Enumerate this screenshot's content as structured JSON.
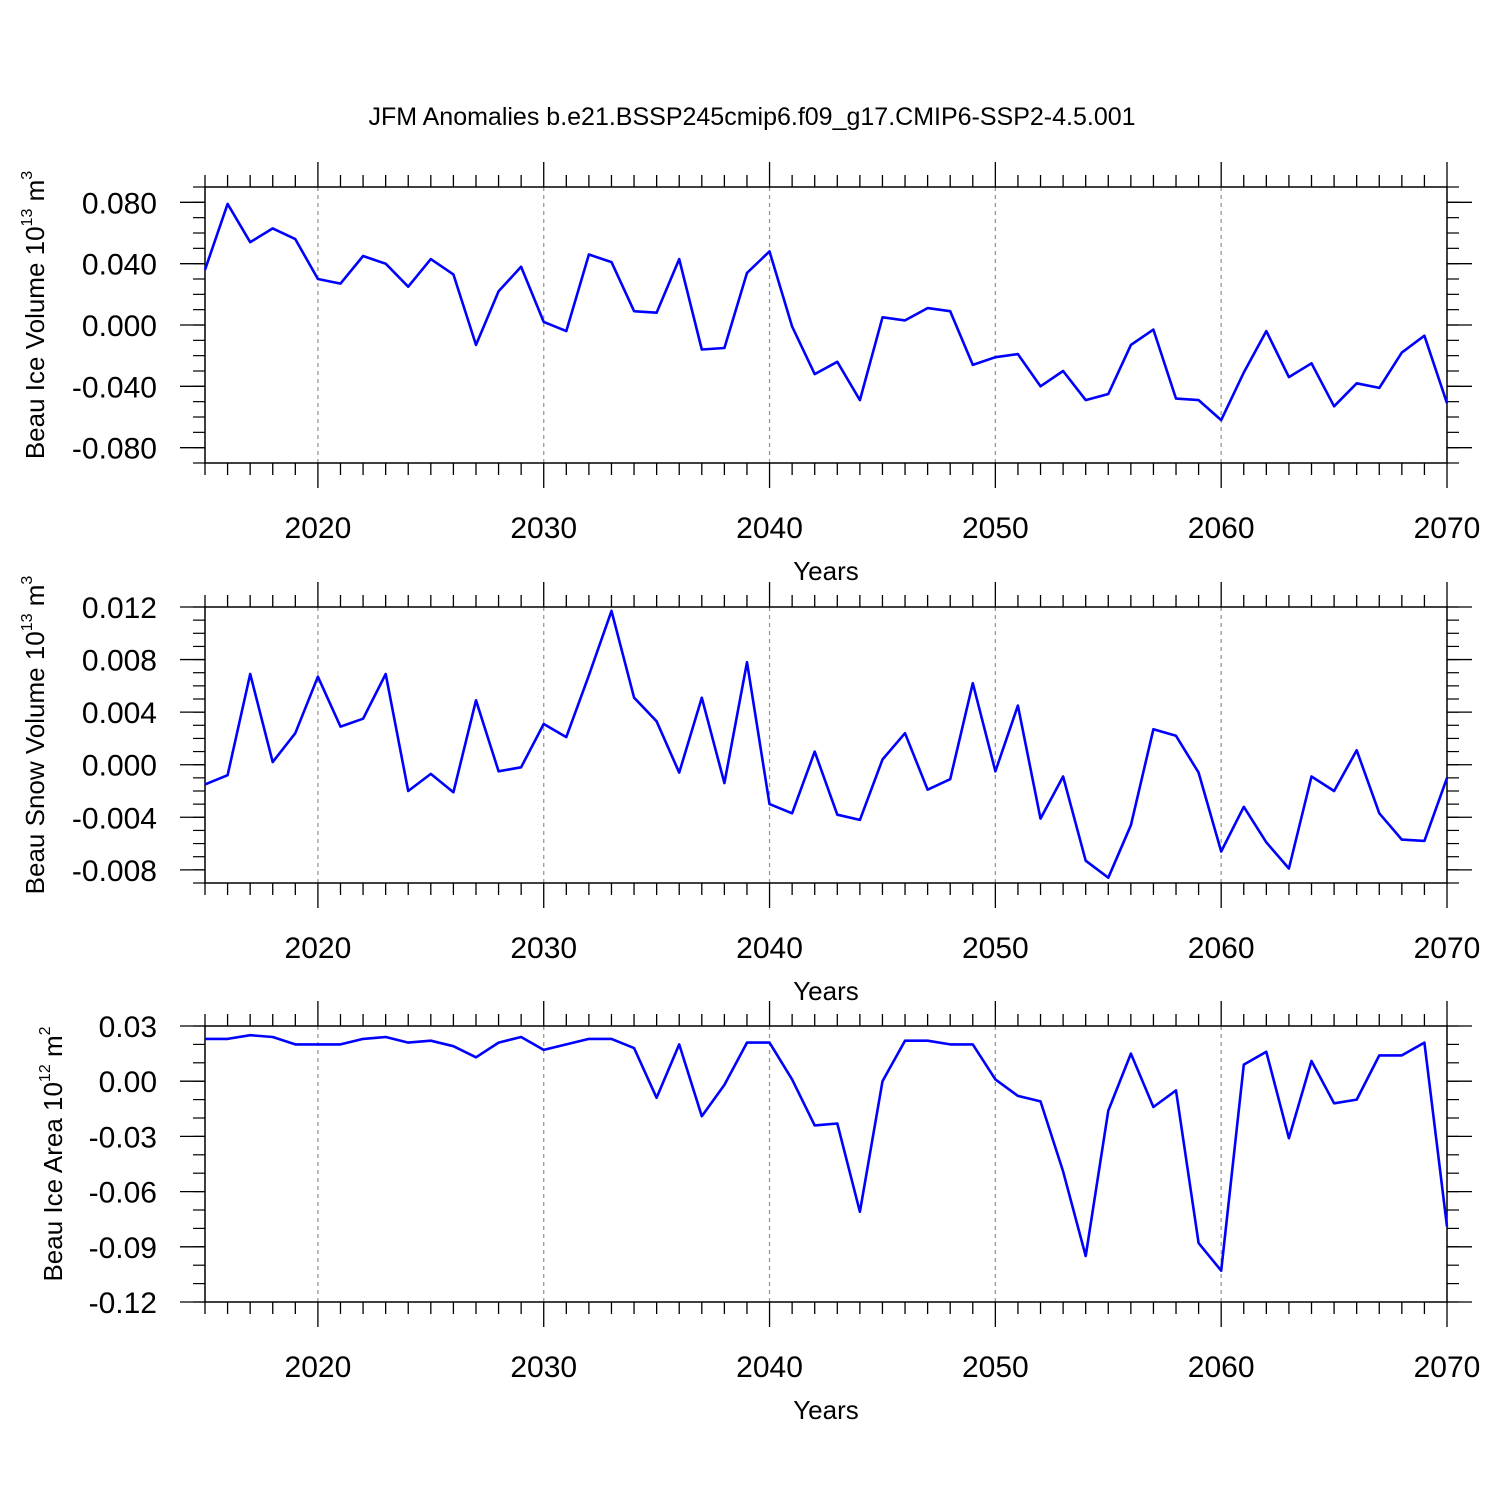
{
  "title": "JFM Anomalies b.e21.BSSP245cmip6.f09_g17.CMIP6-SSP2-4.5.001",
  "colors": {
    "line": "#0000ff",
    "axis": "#000000",
    "grid": "#999999"
  },
  "chart_data": [
    {
      "type": "line",
      "ylabel": "Beau Ice Volume 10",
      "ylabel_exp": "13",
      "ylabel_unit": "m",
      "ylabel_unit_exp": "3",
      "xlabel": "Years",
      "xlim": [
        2015,
        2070
      ],
      "ylim": [
        -0.09,
        0.09
      ],
      "x_ticks": [
        2020,
        2030,
        2040,
        2050,
        2060,
        2070
      ],
      "x_tick_labels": [
        "2020",
        "2030",
        "2040",
        "2050",
        "2060",
        "2070"
      ],
      "y_ticks": [
        0.08,
        0.04,
        0.0,
        -0.04,
        -0.08
      ],
      "y_tick_labels": [
        "0.080",
        "0.040",
        "0.000",
        "-0.040",
        "-0.080"
      ],
      "y_minor_step": 0.01,
      "grid_x": true,
      "series": [
        {
          "name": "Beau Ice Volume",
          "x": [
            2015,
            2016,
            2017,
            2018,
            2019,
            2020,
            2021,
            2022,
            2023,
            2024,
            2025,
            2026,
            2027,
            2028,
            2029,
            2030,
            2031,
            2032,
            2033,
            2034,
            2035,
            2036,
            2037,
            2038,
            2039,
            2040,
            2041,
            2042,
            2043,
            2044,
            2045,
            2046,
            2047,
            2048,
            2049,
            2050,
            2051,
            2052,
            2053,
            2054,
            2055,
            2056,
            2057,
            2058,
            2059,
            2060,
            2061,
            2062,
            2063,
            2064,
            2065,
            2066,
            2067,
            2068,
            2069,
            2070
          ],
          "values": [
            0.036,
            0.079,
            0.054,
            0.063,
            0.056,
            0.03,
            0.027,
            0.045,
            0.04,
            0.025,
            0.043,
            0.033,
            -0.013,
            0.022,
            0.038,
            0.002,
            -0.004,
            0.046,
            0.041,
            0.009,
            0.008,
            0.043,
            -0.016,
            -0.015,
            0.034,
            0.048,
            -0.001,
            -0.032,
            -0.024,
            -0.049,
            0.005,
            0.003,
            0.011,
            0.009,
            -0.026,
            -0.021,
            -0.019,
            -0.04,
            -0.03,
            -0.049,
            -0.045,
            -0.013,
            -0.003,
            -0.048,
            -0.049,
            -0.062,
            -0.031,
            -0.004,
            -0.034,
            -0.025,
            -0.053,
            -0.038,
            -0.041,
            -0.018,
            -0.007,
            -0.051
          ]
        }
      ]
    },
    {
      "type": "line",
      "ylabel": "Beau Snow Volume 10",
      "ylabel_exp": "13",
      "ylabel_unit": "m",
      "ylabel_unit_exp": "3",
      "xlabel": "Years",
      "xlim": [
        2015,
        2070
      ],
      "ylim": [
        -0.009,
        0.012
      ],
      "x_ticks": [
        2020,
        2030,
        2040,
        2050,
        2060,
        2070
      ],
      "x_tick_labels": [
        "2020",
        "2030",
        "2040",
        "2050",
        "2060",
        "2070"
      ],
      "y_ticks": [
        0.012,
        0.008,
        0.004,
        0.0,
        -0.004,
        -0.008
      ],
      "y_tick_labels": [
        "0.012",
        "0.008",
        "0.004",
        "0.000",
        "-0.004",
        "-0.008"
      ],
      "y_minor_step": 0.001,
      "grid_x": true,
      "series": [
        {
          "name": "Beau Snow Volume",
          "x": [
            2015,
            2016,
            2017,
            2018,
            2019,
            2020,
            2021,
            2022,
            2023,
            2024,
            2025,
            2026,
            2027,
            2028,
            2029,
            2030,
            2031,
            2032,
            2033,
            2034,
            2035,
            2036,
            2037,
            2038,
            2039,
            2040,
            2041,
            2042,
            2043,
            2044,
            2045,
            2046,
            2047,
            2048,
            2049,
            2050,
            2051,
            2052,
            2053,
            2054,
            2055,
            2056,
            2057,
            2058,
            2059,
            2060,
            2061,
            2062,
            2063,
            2064,
            2065,
            2066,
            2067,
            2068,
            2069,
            2070
          ],
          "values": [
            -0.0015,
            -0.0008,
            0.0069,
            0.0002,
            0.0024,
            0.0067,
            0.0029,
            0.0035,
            0.0069,
            -0.002,
            -0.0007,
            -0.0021,
            0.0049,
            -0.0005,
            -0.0002,
            0.0031,
            0.0021,
            0.0068,
            0.0117,
            0.0051,
            0.0033,
            -0.0006,
            0.0051,
            -0.0014,
            0.0078,
            -0.003,
            -0.0037,
            0.001,
            -0.0038,
            -0.0042,
            0.0004,
            0.0024,
            -0.0019,
            -0.0011,
            0.0062,
            -0.0005,
            0.0045,
            -0.0041,
            -0.0009,
            -0.0073,
            -0.0086,
            -0.0046,
            0.0027,
            0.0022,
            -0.0006,
            -0.0066,
            -0.0032,
            -0.0059,
            -0.0079,
            -0.0009,
            -0.002,
            0.0011,
            -0.0037,
            -0.0057,
            -0.0058,
            -0.001
          ]
        }
      ]
    },
    {
      "type": "line",
      "ylabel": "Beau Ice Area 10",
      "ylabel_exp": "12",
      "ylabel_unit": "m",
      "ylabel_unit_exp": "2",
      "xlabel": "Years",
      "xlim": [
        2015,
        2070
      ],
      "ylim": [
        -0.12,
        0.03
      ],
      "x_ticks": [
        2020,
        2030,
        2040,
        2050,
        2060,
        2070
      ],
      "x_tick_labels": [
        "2020",
        "2030",
        "2040",
        "2050",
        "2060",
        "2070"
      ],
      "y_ticks": [
        0.03,
        0.0,
        -0.03,
        -0.06,
        -0.09,
        -0.12
      ],
      "y_tick_labels": [
        "0.03",
        "0.00",
        "-0.03",
        "-0.06",
        "-0.09",
        "-0.12"
      ],
      "y_minor_step": 0.01,
      "grid_x": true,
      "series": [
        {
          "name": "Beau Ice Area",
          "x": [
            2015,
            2016,
            2017,
            2018,
            2019,
            2020,
            2021,
            2022,
            2023,
            2024,
            2025,
            2026,
            2027,
            2028,
            2029,
            2030,
            2031,
            2032,
            2033,
            2034,
            2035,
            2036,
            2037,
            2038,
            2039,
            2040,
            2041,
            2042,
            2043,
            2044,
            2045,
            2046,
            2047,
            2048,
            2049,
            2050,
            2051,
            2052,
            2053,
            2054,
            2055,
            2056,
            2057,
            2058,
            2059,
            2060,
            2061,
            2062,
            2063,
            2064,
            2065,
            2066,
            2067,
            2068,
            2069,
            2070
          ],
          "values": [
            0.023,
            0.023,
            0.025,
            0.024,
            0.02,
            0.02,
            0.02,
            0.023,
            0.024,
            0.021,
            0.022,
            0.019,
            0.013,
            0.021,
            0.024,
            0.017,
            0.02,
            0.023,
            0.023,
            0.018,
            -0.009,
            0.02,
            -0.019,
            -0.002,
            0.021,
            0.021,
            0.001,
            -0.024,
            -0.023,
            -0.071,
            0.0,
            0.022,
            0.022,
            0.02,
            0.02,
            0.001,
            -0.008,
            -0.011,
            -0.049,
            -0.095,
            -0.016,
            0.015,
            -0.014,
            -0.005,
            -0.088,
            -0.103,
            0.009,
            0.016,
            -0.031,
            0.011,
            -0.012,
            -0.01,
            0.014,
            0.014,
            0.021,
            -0.079
          ]
        }
      ]
    }
  ]
}
